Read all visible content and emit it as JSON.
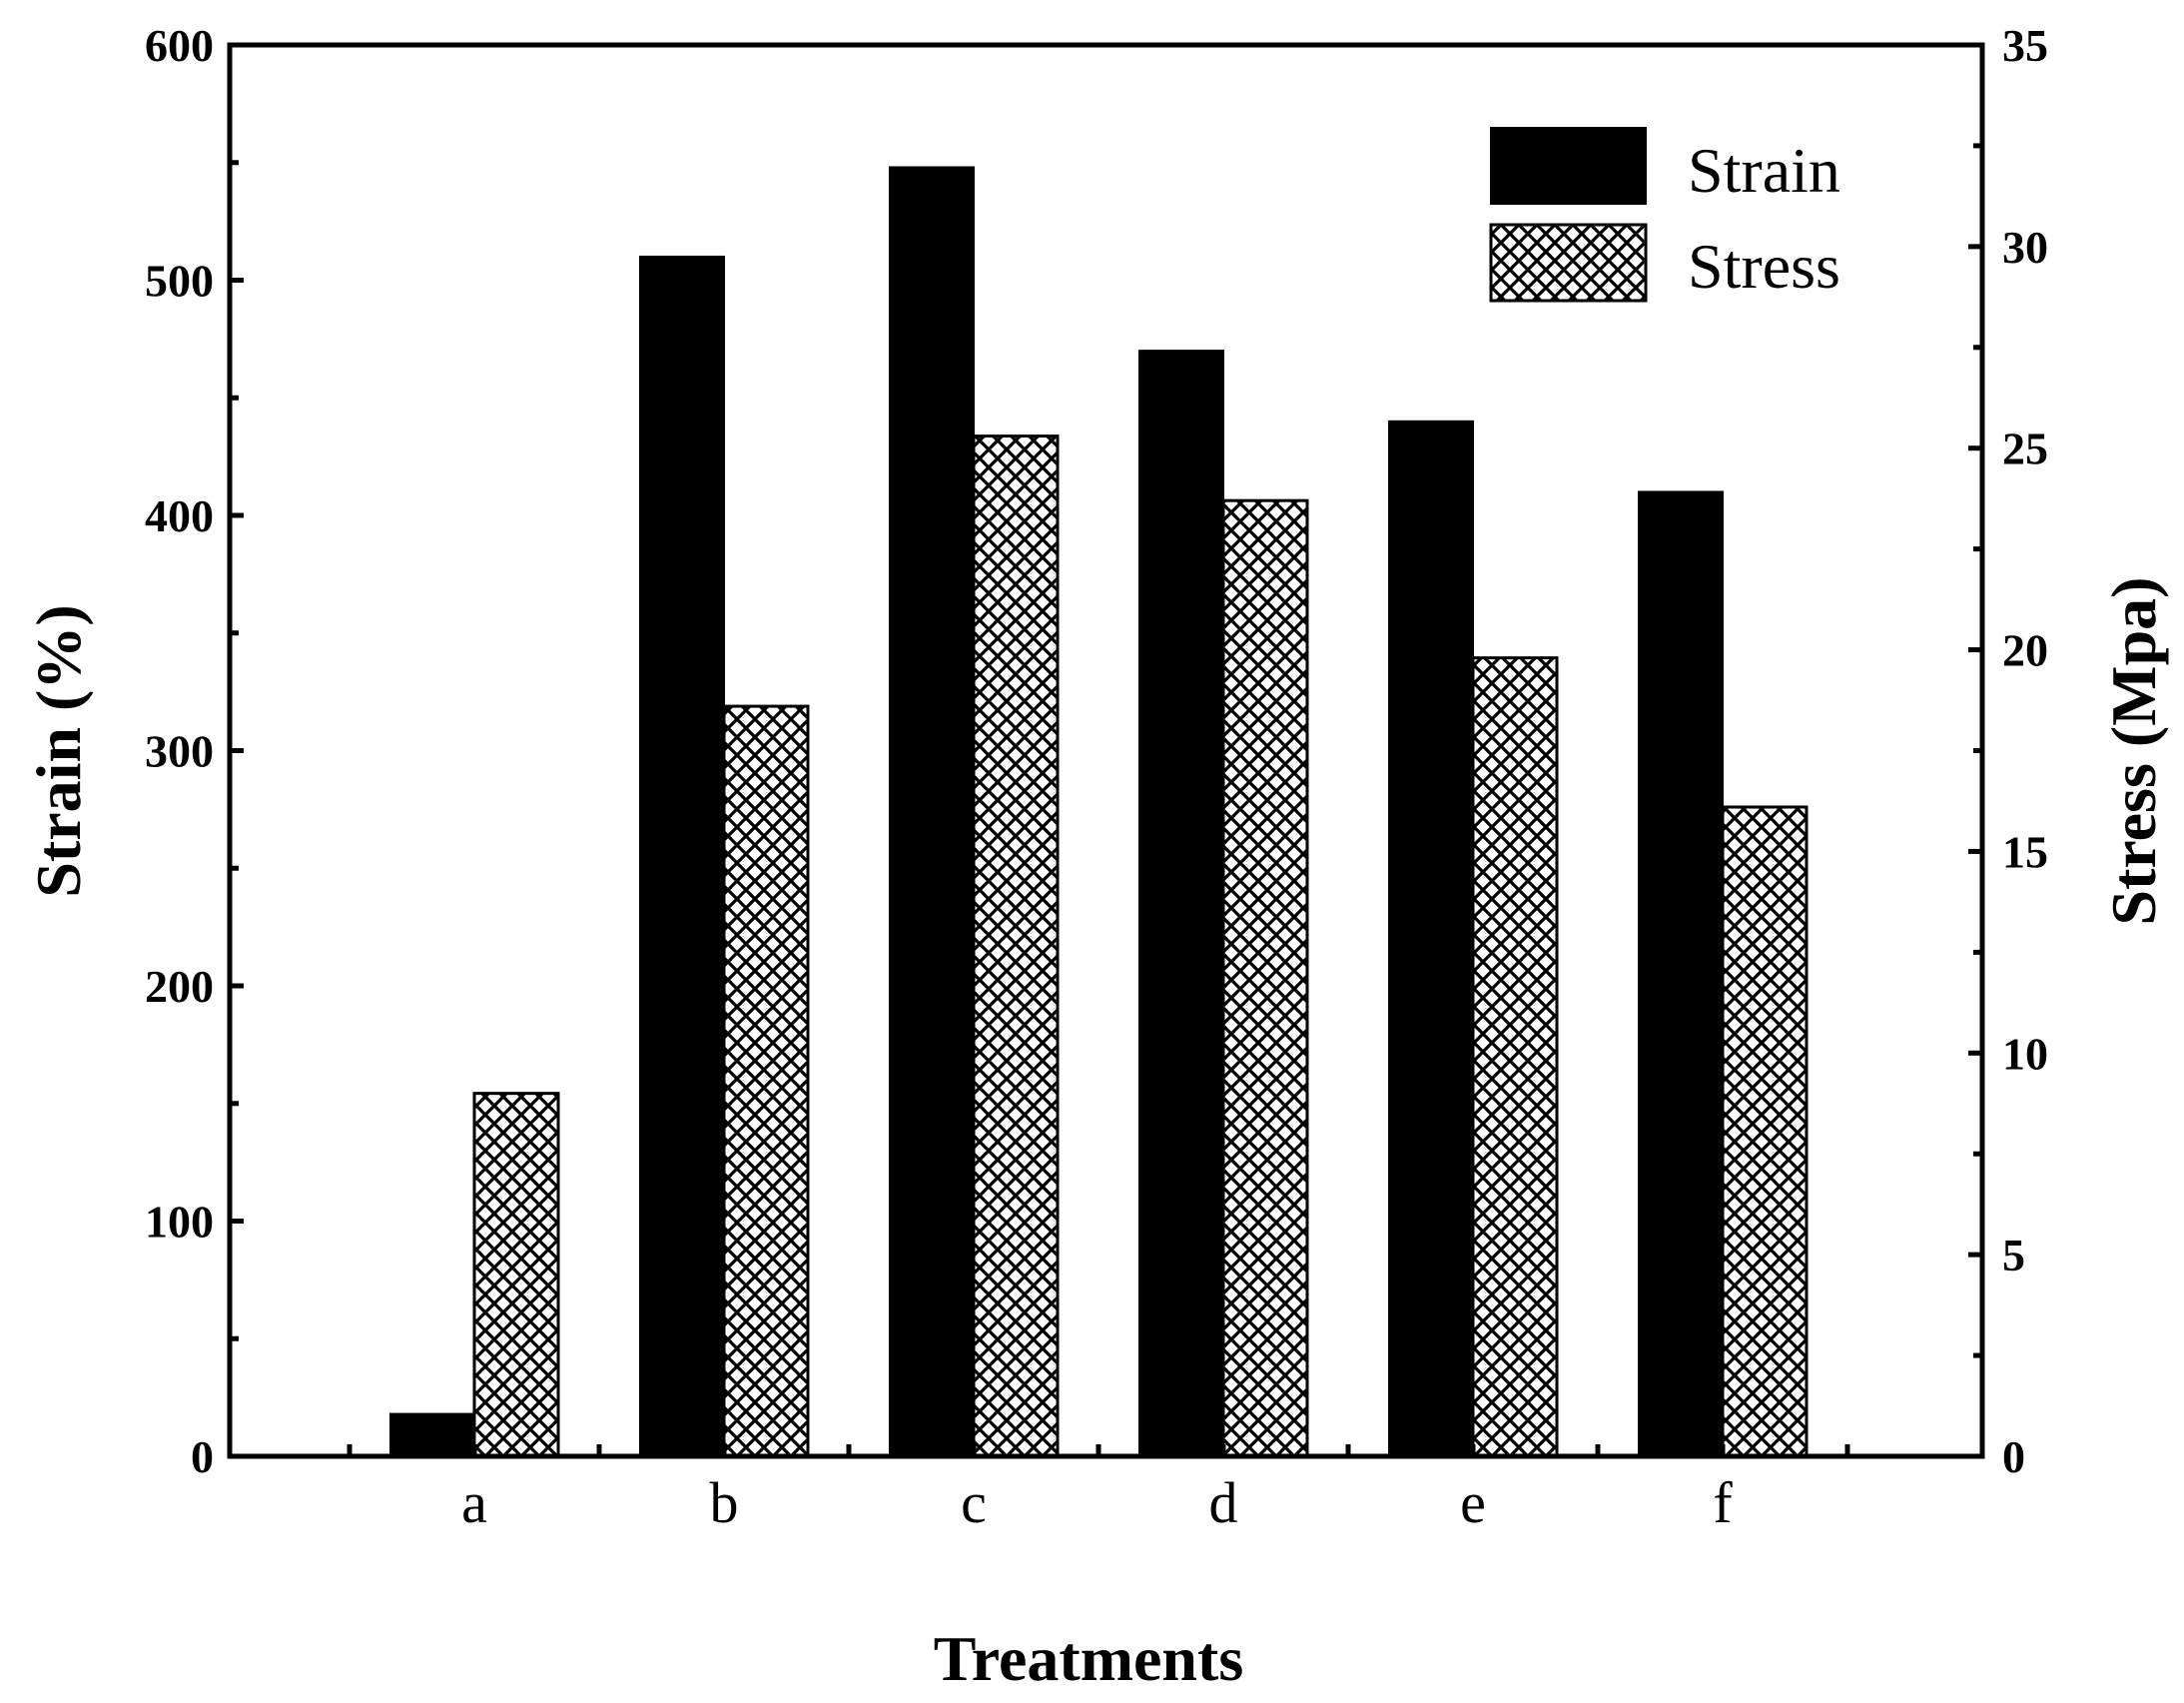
{
  "chart_data": {
    "type": "bar",
    "categories": [
      "a",
      "b",
      "c",
      "d",
      "e",
      "f"
    ],
    "series": [
      {
        "name": "Strain",
        "axis": "left",
        "fill": "solid",
        "color": "#000000",
        "values": [
          18,
          510,
          548,
          470,
          440,
          410
        ]
      },
      {
        "name": "Stress",
        "axis": "right",
        "fill": "crosshatch",
        "color": "#000000",
        "values": [
          9.0,
          18.6,
          25.3,
          23.7,
          19.8,
          16.1
        ]
      }
    ],
    "xlabel": "Treatments",
    "ylabel_left": "Strain (%)",
    "ylabel_right": "Stress (Mpa)",
    "ylim_left": [
      0,
      600
    ],
    "ylim_right": [
      0,
      35
    ],
    "yticks_left": [
      0,
      100,
      200,
      300,
      400,
      500,
      600
    ],
    "yticks_right": [
      0,
      5,
      10,
      15,
      20,
      25,
      30,
      35
    ],
    "legend_position": "top-right",
    "grid": false
  }
}
